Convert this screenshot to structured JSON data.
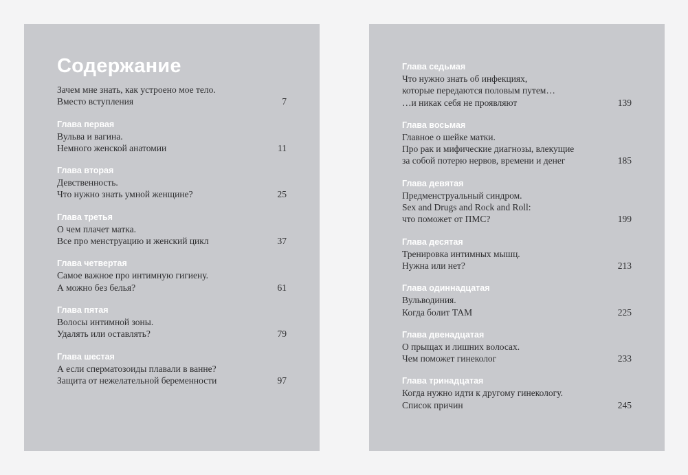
{
  "left_page": {
    "title": "Содержание",
    "entries": [
      {
        "heading": "",
        "lines": [
          "Зачем мне знать, как устроено мое тело.",
          "Вместо вступления"
        ],
        "page": "7"
      },
      {
        "heading": "Глава первая",
        "lines": [
          "Вульва и вагина.",
          "Немного женской анатомии"
        ],
        "page": "11"
      },
      {
        "heading": "Глава вторая",
        "lines": [
          "Девственность.",
          "Что нужно знать умной женщине?"
        ],
        "page": "25"
      },
      {
        "heading": "Глава третья",
        "lines": [
          "О чем плачет матка.",
          "Все про менструацию и женский цикл"
        ],
        "page": "37"
      },
      {
        "heading": "Глава четвертая",
        "lines": [
          "Самое важное про интимную гигиену.",
          "А можно без белья?"
        ],
        "page": "61"
      },
      {
        "heading": "Глава пятая",
        "lines": [
          "Волосы интимной зоны.",
          "Удалять или оставлять?"
        ],
        "page": "79"
      },
      {
        "heading": "Глава шестая",
        "lines": [
          "А если сперматозоиды плавали в ванне?",
          "Защита от нежелательной беременности"
        ],
        "page": "97"
      }
    ]
  },
  "right_page": {
    "entries": [
      {
        "heading": "Глава седьмая",
        "lines": [
          "Что нужно знать об инфекциях,",
          "которые передаются половым путем…",
          "…и никак себя не проявляют"
        ],
        "page": "139"
      },
      {
        "heading": "Глава восьмая",
        "lines": [
          "Главное о шейке матки.",
          "Про рак и мифические диагнозы, влекущие",
          "за собой потерю нервов, времени и денег"
        ],
        "page": "185"
      },
      {
        "heading": "Глава девятая",
        "lines": [
          "Предменструальный синдром.",
          "Sex and Drugs and Rock and Roll:",
          "что поможет от ПМС?"
        ],
        "page": "199"
      },
      {
        "heading": "Глава десятая",
        "lines": [
          "Тренировка интимных мышц.",
          "Нужна или нет?"
        ],
        "page": "213"
      },
      {
        "heading": "Глава одиннадцатая",
        "lines": [
          "Вульводиния.",
          "Когда болит ТАМ"
        ],
        "page": "225"
      },
      {
        "heading": "Глава двенадцатая",
        "lines": [
          "О прыщах и лишних волосах.",
          "Чем поможет гинеколог"
        ],
        "page": "233"
      },
      {
        "heading": "Глава тринадцатая",
        "lines": [
          "Когда нужно идти к другому гинекологу.",
          "Список причин"
        ],
        "page": "245"
      }
    ]
  },
  "colors": {
    "panel": "#c8c9cd",
    "heading": "#ffffff",
    "text": "#2e2e30"
  }
}
